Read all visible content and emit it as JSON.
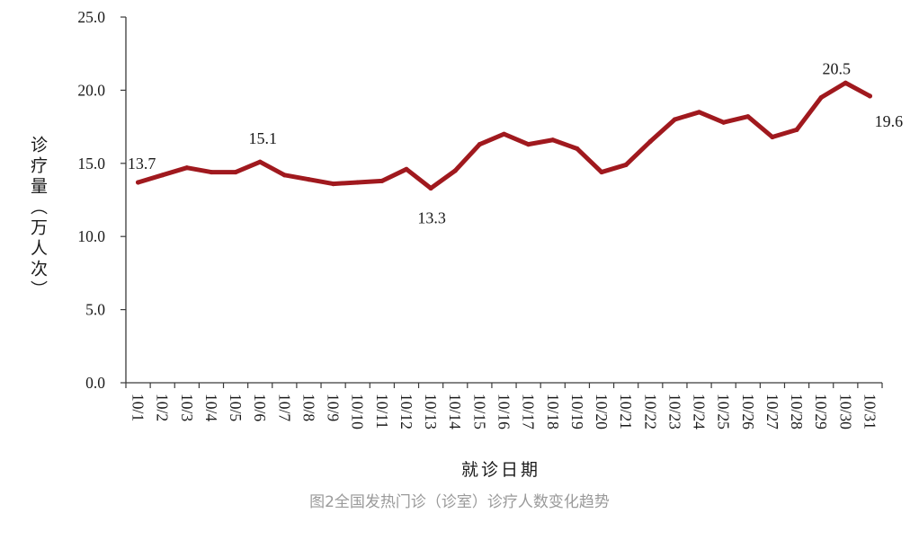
{
  "caption": "图2全国发热门诊（诊室）诊疗人数变化趋势",
  "chart_data": {
    "type": "line",
    "title": "",
    "xlabel": "就诊日期",
    "ylabel": "诊疗量（万人次）",
    "ylim": [
      0,
      25
    ],
    "yticks": [
      "0.0",
      "5.0",
      "10.0",
      "15.0",
      "20.0",
      "25.0"
    ],
    "grid": false,
    "legend": "none",
    "categories": [
      "10/1",
      "10/2",
      "10/3",
      "10/4",
      "10/5",
      "10/6",
      "10/7",
      "10/8",
      "10/9",
      "10/10",
      "10/11",
      "10/12",
      "10/13",
      "10/14",
      "10/15",
      "10/16",
      "10/17",
      "10/18",
      "10/19",
      "10/20",
      "10/21",
      "10/22",
      "10/23",
      "10/24",
      "10/25",
      "10/26",
      "10/27",
      "10/28",
      "10/29",
      "10/30",
      "10/31"
    ],
    "series": [
      {
        "color": "#A0191E",
        "values": [
          13.7,
          14.2,
          14.7,
          14.4,
          14.4,
          15.1,
          14.2,
          13.9,
          13.6,
          13.7,
          13.8,
          14.6,
          13.3,
          14.5,
          16.3,
          17.0,
          16.3,
          16.6,
          16.0,
          14.4,
          14.9,
          16.5,
          18.0,
          18.5,
          17.8,
          18.2,
          16.8,
          17.3,
          19.5,
          20.5,
          19.6
        ]
      }
    ],
    "data_labels": [
      {
        "category": "10/1",
        "text": "13.7"
      },
      {
        "category": "10/6",
        "text": "15.1"
      },
      {
        "category": "10/13",
        "text": "13.3"
      },
      {
        "category": "10/30",
        "text": "20.5"
      },
      {
        "category": "10/31",
        "text": "19.6"
      }
    ]
  }
}
